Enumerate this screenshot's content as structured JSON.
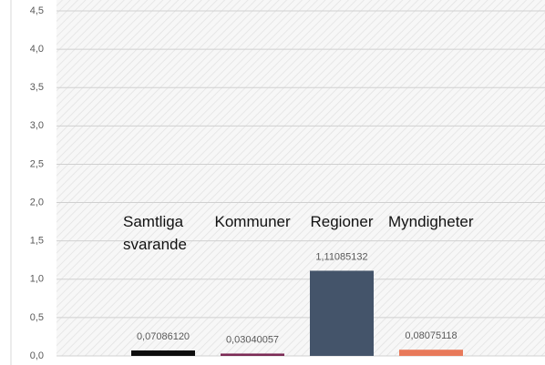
{
  "chart_data": {
    "type": "bar",
    "categories": [
      "Samtliga svarande",
      "Kommuner",
      "Regioner",
      "Myndigheter"
    ],
    "values": [
      0.0708612,
      0.03040057,
      1.11085132,
      0.08075118
    ],
    "value_labels": [
      "0,07086120",
      "0,03040057",
      "1,11085132",
      "0,08075118"
    ],
    "colors": [
      "#0d0d0d",
      "#7b2a55",
      "#44546a",
      "#e8795a"
    ],
    "ylim": [
      0,
      4.5
    ],
    "yticks": [
      {
        "value": 0,
        "label": "0,0"
      },
      {
        "value": 0.5,
        "label": "0,5"
      },
      {
        "value": 1,
        "label": "1,0"
      },
      {
        "value": 1.5,
        "label": "1,5"
      },
      {
        "value": 2,
        "label": "2,0"
      },
      {
        "value": 2.5,
        "label": "2,5"
      },
      {
        "value": 3,
        "label": "3,0"
      },
      {
        "value": 3.5,
        "label": "3,5"
      },
      {
        "value": 4,
        "label": "4,0"
      },
      {
        "value": 4.5,
        "label": "4,5"
      }
    ],
    "grid": true
  }
}
